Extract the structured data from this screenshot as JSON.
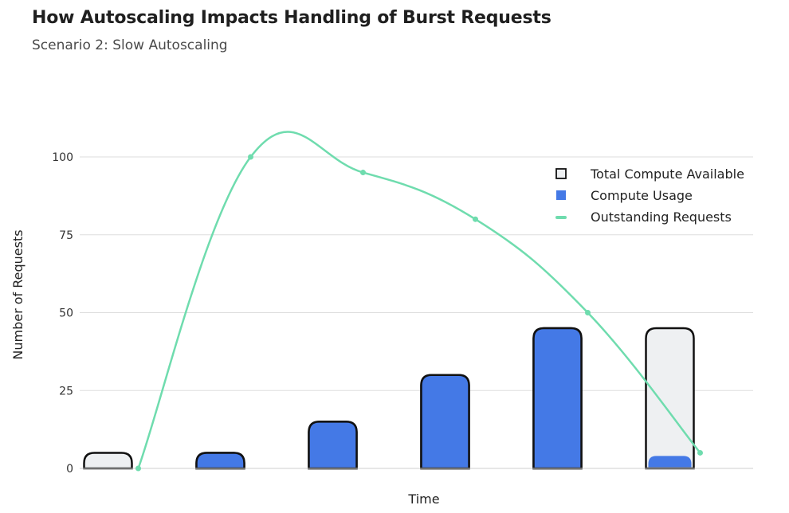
{
  "title": "How Autoscaling Impacts Handling of Burst Requests",
  "subtitle": "Scenario 2: Slow Autoscaling",
  "colors": {
    "capacity_fill": "#eef0f2",
    "usage_fill": "#4479e6",
    "outstanding_line": "#6fdcae",
    "bar_outline": "#111111",
    "grid": "#dddddd"
  },
  "chart_data": {
    "type": "bar",
    "title": "How Autoscaling Impacts Handling of Burst Requests",
    "subtitle": "Scenario 2: Slow Autoscaling",
    "xlabel": "Time",
    "ylabel": "Number of Requests",
    "categories": [
      "",
      "",
      "",
      "",
      "",
      ""
    ],
    "ylim": [
      0,
      100
    ],
    "yticks": [
      "0",
      "25",
      "50",
      "75",
      "100"
    ],
    "grid": true,
    "legend_position": "top-right",
    "series": [
      {
        "name": "Total Compute Available",
        "kind": "bar-outline",
        "values": [
          5,
          5,
          15,
          30,
          45,
          45
        ]
      },
      {
        "name": "Compute Usage",
        "kind": "bar",
        "values": [
          0,
          5,
          15,
          30,
          45,
          4
        ]
      },
      {
        "name": "Outstanding Requests",
        "kind": "line",
        "values": [
          0,
          100,
          95,
          80,
          50,
          5
        ]
      }
    ]
  }
}
